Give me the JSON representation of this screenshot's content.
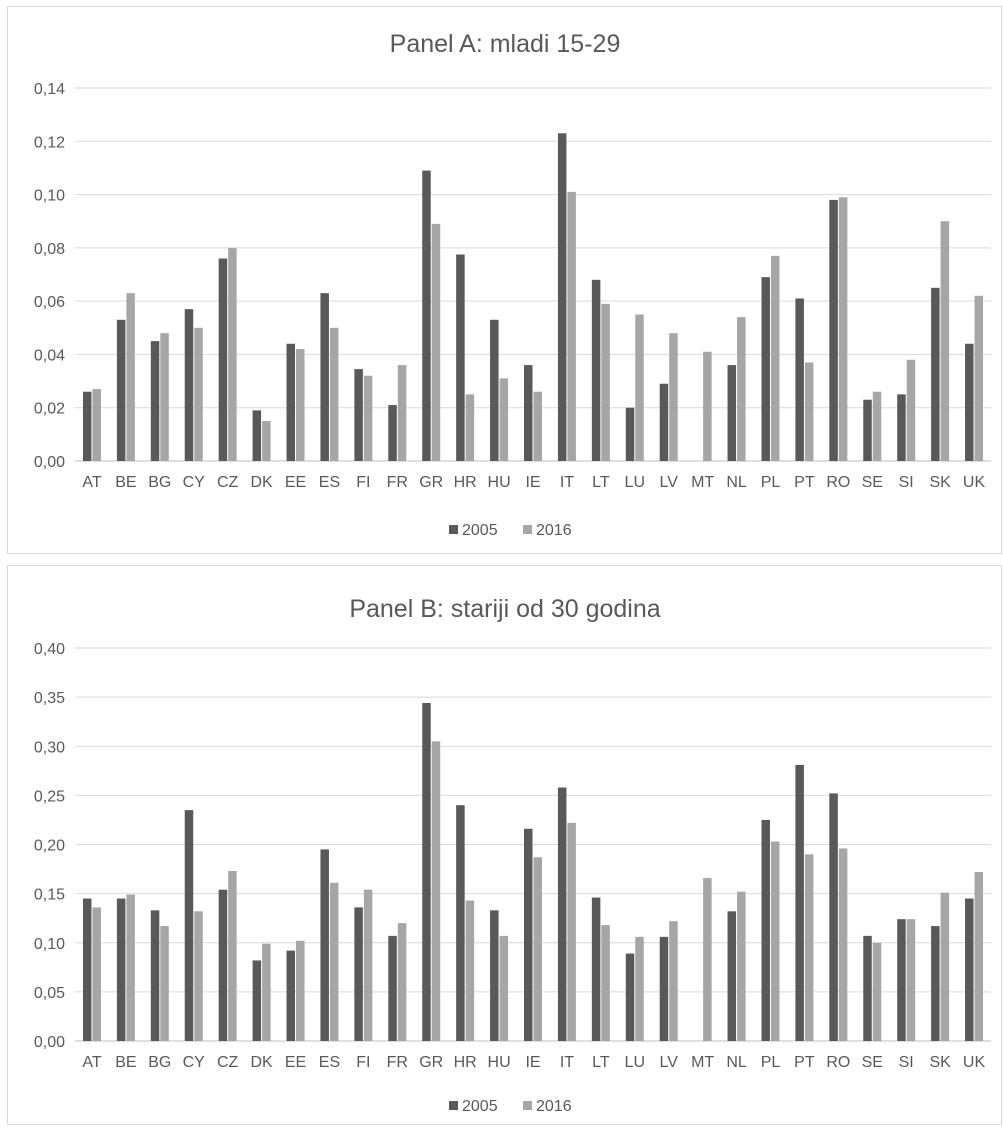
{
  "chart_data": [
    {
      "type": "bar",
      "title": "Panel A: mladi  15-29",
      "categories": [
        "AT",
        "BE",
        "BG",
        "CY",
        "CZ",
        "DK",
        "EE",
        "ES",
        "FI",
        "FR",
        "GR",
        "HR",
        "HU",
        "IE",
        "IT",
        "LT",
        "LU",
        "LV",
        "MT",
        "NL",
        "PL",
        "PT",
        "RO",
        "SE",
        "SI",
        "SK",
        "UK"
      ],
      "series": [
        {
          "name": "2005",
          "color": "#595959",
          "values": [
            0.026,
            0.053,
            0.045,
            0.057,
            0.076,
            0.019,
            0.044,
            0.063,
            0.0345,
            0.021,
            0.109,
            0.0775,
            0.053,
            0.036,
            0.123,
            0.068,
            0.02,
            0.029,
            null,
            0.036,
            0.069,
            0.061,
            0.098,
            0.023,
            0.025,
            0.065,
            0.044
          ]
        },
        {
          "name": "2016",
          "color": "#a6a6a6",
          "values": [
            0.027,
            0.063,
            0.048,
            0.05,
            0.08,
            0.015,
            0.042,
            0.05,
            0.032,
            0.036,
            0.089,
            0.025,
            0.031,
            0.026,
            0.101,
            0.059,
            0.055,
            0.048,
            0.041,
            0.054,
            0.077,
            0.037,
            0.099,
            0.026,
            0.038,
            0.09,
            0.062
          ]
        }
      ],
      "ylim": [
        0,
        0.14
      ],
      "yticks": [
        "0,00",
        "0,02",
        "0,04",
        "0,06",
        "0,08",
        "0,10",
        "0,12",
        "0,14"
      ],
      "legend": "bottom",
      "grid": true
    },
    {
      "type": "bar",
      "title": "Panel B: stariji od 30 godina",
      "categories": [
        "AT",
        "BE",
        "BG",
        "CY",
        "CZ",
        "DK",
        "EE",
        "ES",
        "FI",
        "FR",
        "GR",
        "HR",
        "HU",
        "IE",
        "IT",
        "LT",
        "LU",
        "LV",
        "MT",
        "NL",
        "PL",
        "PT",
        "RO",
        "SE",
        "SI",
        "SK",
        "UK"
      ],
      "series": [
        {
          "name": "2005",
          "color": "#595959",
          "values": [
            0.145,
            0.145,
            0.133,
            0.235,
            0.154,
            0.082,
            0.092,
            0.195,
            0.136,
            0.107,
            0.344,
            0.24,
            0.133,
            0.216,
            0.258,
            0.146,
            0.089,
            0.106,
            null,
            0.132,
            0.225,
            0.281,
            0.252,
            0.107,
            0.124,
            0.117,
            0.145
          ]
        },
        {
          "name": "2016",
          "color": "#a6a6a6",
          "values": [
            0.136,
            0.149,
            0.117,
            0.132,
            0.173,
            0.099,
            0.102,
            0.161,
            0.154,
            0.12,
            0.305,
            0.143,
            0.107,
            0.187,
            0.222,
            0.118,
            0.106,
            0.122,
            0.166,
            0.152,
            0.203,
            0.19,
            0.196,
            0.1,
            0.124,
            0.151,
            0.172
          ]
        }
      ],
      "ylim": [
        0,
        0.4
      ],
      "yticks": [
        "0,00",
        "0,05",
        "0,10",
        "0,15",
        "0,20",
        "0,25",
        "0,30",
        "0,35",
        "0,40"
      ],
      "legend": "bottom",
      "grid": true
    }
  ]
}
